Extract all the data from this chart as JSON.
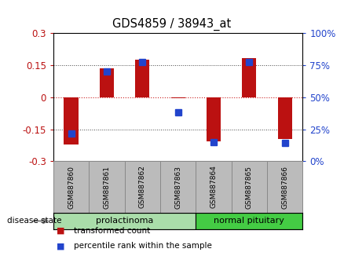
{
  "title": "GDS4859 / 38943_at",
  "samples": [
    "GSM887860",
    "GSM887861",
    "GSM887862",
    "GSM887863",
    "GSM887864",
    "GSM887865",
    "GSM887866"
  ],
  "red_values": [
    -0.22,
    0.135,
    0.175,
    -0.005,
    -0.205,
    0.185,
    -0.195
  ],
  "blue_values": [
    -0.17,
    0.12,
    0.165,
    -0.07,
    -0.21,
    0.165,
    -0.215
  ],
  "ylim": [
    -0.3,
    0.3
  ],
  "yticks_left": [
    -0.3,
    -0.15,
    0,
    0.15,
    0.3
  ],
  "yticks_right": [
    0,
    25,
    50,
    75,
    100
  ],
  "yticks_right_vals": [
    -0.3,
    -0.15,
    0,
    0.15,
    0.3
  ],
  "groups": [
    {
      "label": "prolactinoma",
      "samples": [
        0,
        1,
        2,
        3
      ],
      "color": "#aaddaa"
    },
    {
      "label": "normal pituitary",
      "samples": [
        4,
        5,
        6
      ],
      "color": "#44cc44"
    }
  ],
  "disease_state_label": "disease state",
  "red_color": "#BB1111",
  "blue_color": "#2244CC",
  "bar_width": 0.4,
  "blue_marker_size": 6,
  "grid_color": "#555555",
  "axis_bg": "#FFFFFF",
  "sample_bg": "#BBBBBB",
  "legend_red": "transformed count",
  "legend_blue": "percentile rank within the sample"
}
